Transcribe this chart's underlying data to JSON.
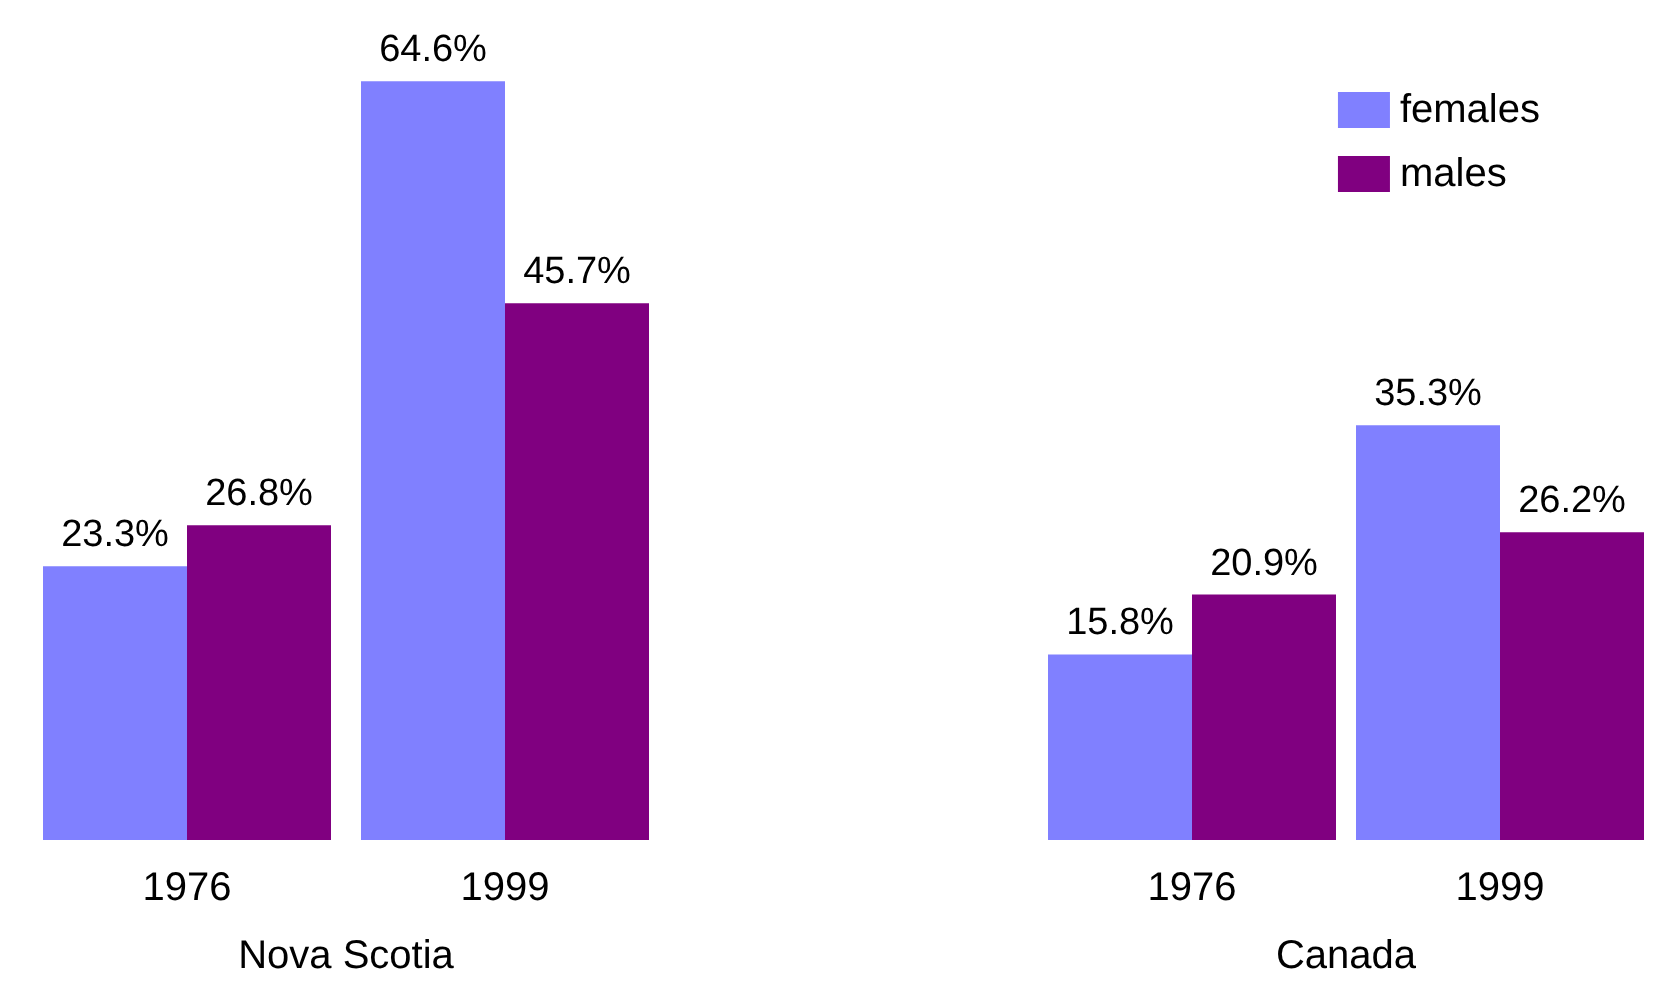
{
  "chart_data": [
    {
      "type": "bar",
      "xlabel": "Nova Scotia",
      "categories": [
        "1976",
        "1999"
      ],
      "legend": false,
      "series": [
        {
          "color": "#8080ff",
          "values": [
            23.3,
            64.6
          ],
          "value_labels": [
            "23.3%",
            "64.6%"
          ]
        },
        {
          "color": "#800080",
          "values": [
            26.8,
            45.7
          ],
          "value_labels": [
            "26.8%",
            "45.7%"
          ]
        }
      ]
    },
    {
      "type": "bar",
      "xlabel": "Canada",
      "categories": [
        "1976",
        "1999"
      ],
      "legend": "top right",
      "series": [
        {
          "name": "females",
          "color": "#8080ff",
          "values": [
            15.8,
            35.3
          ],
          "value_labels": [
            "15.8%",
            "35.3%"
          ]
        },
        {
          "name": "males",
          "color": "#800080",
          "values": [
            20.9,
            26.2
          ],
          "value_labels": [
            "20.9%",
            "26.2%"
          ]
        }
      ]
    }
  ]
}
